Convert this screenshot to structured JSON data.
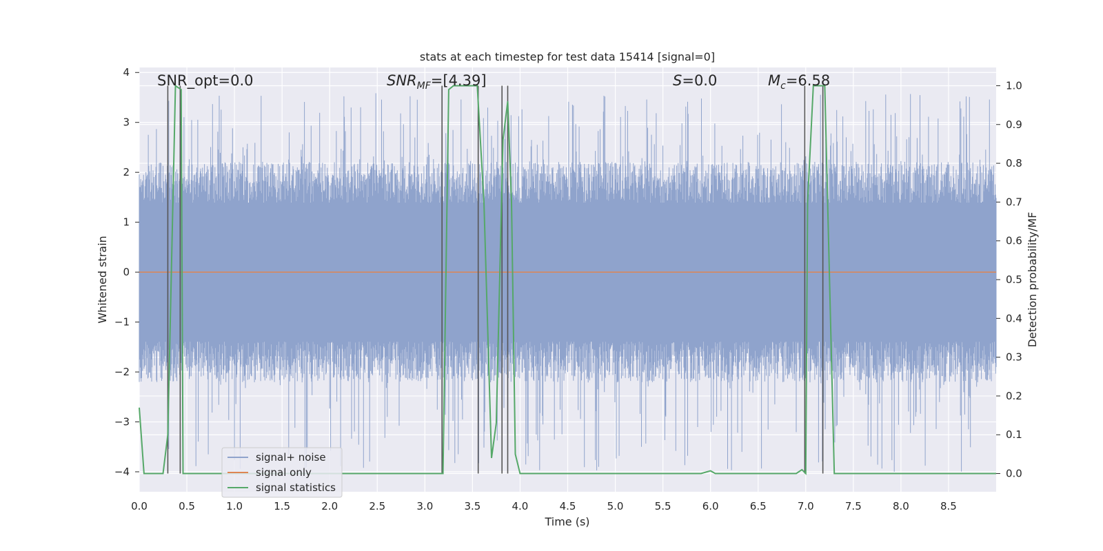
{
  "chart_data": {
    "type": "line",
    "title": "stats at each timestep for test data 15414 [signal=0]",
    "xlabel": "Time (s)",
    "ylabel_left": "Whitened strain",
    "ylabel_right": "Detection probability/MF",
    "xlim": [
      0,
      9.0
    ],
    "ylim_left": [
      -4.4,
      4.1
    ],
    "ylim_right": [
      -0.047,
      1.047
    ],
    "xticks": [
      "0.0",
      "0.5",
      "1.0",
      "1.5",
      "2.0",
      "2.5",
      "3.0",
      "3.5",
      "4.0",
      "4.5",
      "5.0",
      "5.5",
      "6.0",
      "6.5",
      "7.0",
      "7.5",
      "8.0",
      "8.5"
    ],
    "yticks_left": [
      "−4",
      "−3",
      "−2",
      "−1",
      "0",
      "1",
      "2",
      "3",
      "4"
    ],
    "yticks_right": [
      "0.0",
      "0.1",
      "0.2",
      "0.3",
      "0.4",
      "0.5",
      "0.6",
      "0.7",
      "0.8",
      "0.9",
      "1.0"
    ],
    "grid": true,
    "legend_position": "lower-left",
    "annotations": {
      "snr_opt": "SNR_opt=0.0",
      "snr_mf_base": "SNR",
      "snr_mf_sub": "MF",
      "snr_mf_rest": "=[4.39]",
      "s_var": "S",
      "s_rest": "=0.0",
      "mc_base": "M",
      "mc_sub": "c",
      "mc_rest": "=6.58"
    },
    "series": [
      {
        "name": "signal+ noise",
        "color": "#8fa3cc",
        "noise_band": {
          "x_range": [
            0,
            9.0
          ],
          "typical_range": [
            -1.7,
            1.7
          ],
          "peak_range": [
            -4.0,
            3.6
          ]
        }
      },
      {
        "name": "signal only",
        "color": "#dd8452",
        "x": [
          0,
          9.0
        ],
        "y": [
          0,
          0
        ]
      },
      {
        "name": "signal statistics",
        "color": "#55a868",
        "axis": "right",
        "x": [
          0.0,
          0.05,
          0.25,
          0.3,
          0.38,
          0.44,
          0.46,
          0.5,
          1.0,
          2.0,
          3.0,
          3.19,
          3.25,
          3.3,
          3.4,
          3.55,
          3.62,
          3.7,
          3.75,
          3.82,
          3.87,
          3.91,
          3.95,
          4.0,
          4.5,
          5.0,
          5.5,
          5.9,
          6.0,
          6.05,
          6.15,
          6.5,
          7.0,
          6.9,
          6.96,
          7.02,
          7.08,
          7.14,
          7.2,
          7.3,
          7.5,
          8.0,
          9.0
        ],
        "y": [
          0.17,
          0.0,
          0.0,
          0.1,
          1.0,
          0.99,
          0.0,
          0.0,
          0.0,
          0.0,
          0.0,
          0.0,
          0.99,
          1.0,
          1.0,
          1.0,
          0.7,
          0.04,
          0.13,
          0.86,
          0.96,
          0.7,
          0.05,
          0.0,
          0.0,
          0.0,
          0.0,
          0.0,
          0.007,
          0.0,
          0.0,
          0.0,
          0.0,
          0.0,
          0.01,
          0.7,
          1.0,
          1.0,
          1.0,
          0.0,
          0.0,
          0.0,
          0.0
        ]
      }
    ],
    "vertical_markers": [
      0.3,
      0.43,
      3.18,
      3.56,
      3.81,
      3.87,
      6.99,
      7.18
    ]
  }
}
